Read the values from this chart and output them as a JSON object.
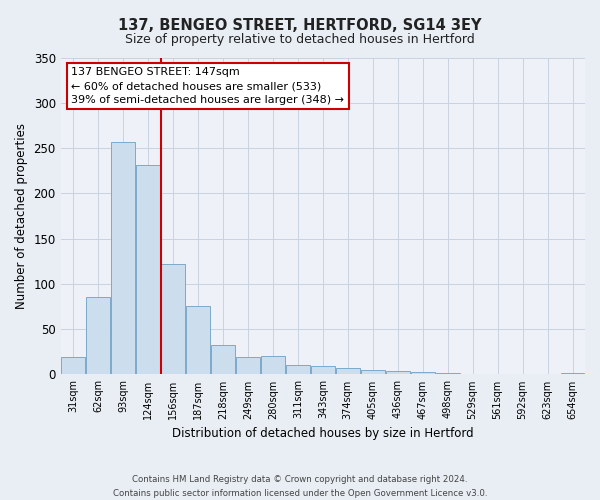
{
  "title": "137, BENGEO STREET, HERTFORD, SG14 3EY",
  "subtitle": "Size of property relative to detached houses in Hertford",
  "xlabel": "Distribution of detached houses by size in Hertford",
  "ylabel": "Number of detached properties",
  "categories": [
    "31sqm",
    "62sqm",
    "93sqm",
    "124sqm",
    "156sqm",
    "187sqm",
    "218sqm",
    "249sqm",
    "280sqm",
    "311sqm",
    "343sqm",
    "374sqm",
    "405sqm",
    "436sqm",
    "467sqm",
    "498sqm",
    "529sqm",
    "561sqm",
    "592sqm",
    "623sqm",
    "654sqm"
  ],
  "bar_values": [
    19,
    86,
    257,
    231,
    122,
    76,
    33,
    19,
    20,
    10,
    9,
    7,
    5,
    4,
    3,
    2,
    1,
    0,
    0,
    0,
    2
  ],
  "bar_color": "#ccdded",
  "bar_edge_color": "#7aaac8",
  "vline_color": "#cc0000",
  "ylim": [
    0,
    350
  ],
  "yticks": [
    0,
    50,
    100,
    150,
    200,
    250,
    300,
    350
  ],
  "annotation_title": "137 BENGEO STREET: 147sqm",
  "annotation_line1": "← 60% of detached houses are smaller (533)",
  "annotation_line2": "39% of semi-detached houses are larger (348) →",
  "annotation_box_color": "#ffffff",
  "annotation_box_edge": "#cc0000",
  "footer_line1": "Contains HM Land Registry data © Crown copyright and database right 2024.",
  "footer_line2": "Contains public sector information licensed under the Open Government Licence v3.0.",
  "background_color": "#e8eef4",
  "plot_bg_color": "#eef2f8",
  "grid_color": "#c8d4e0"
}
